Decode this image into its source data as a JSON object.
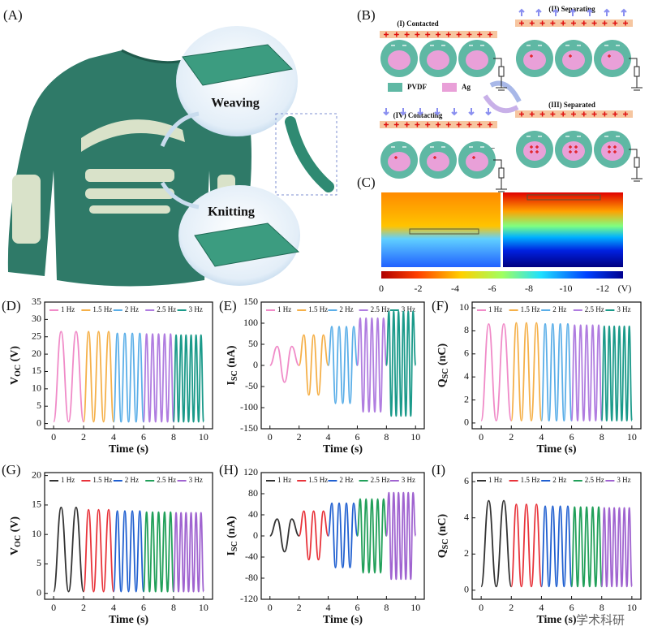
{
  "panel_labels": [
    "(A)",
    "(B)",
    "(C)",
    "(D)",
    "(E)",
    "(F)",
    "(G)",
    "(H)",
    "(I)"
  ],
  "panel_a": {
    "weaving": "Weaving",
    "knitting": "Knitting"
  },
  "panel_b": {
    "states": [
      "(I) Contacted",
      "(II) Separating",
      "(III) Separated",
      "(IV) Contacting"
    ],
    "legend": [
      "PVDF",
      "Ag"
    ],
    "electron": "e⁻"
  },
  "panel_c": {
    "colorbar_ticks": [
      0,
      -2,
      -4,
      -6,
      -8,
      -10,
      -12
    ],
    "unit": "(V)"
  },
  "watermark": "学术科研",
  "chart_data": [
    {
      "type": "line",
      "ylabel_symbol": "V",
      "ylabel_subscript": "OC",
      "ylabel_unit": " (V)",
      "xlabel": "Time (s)",
      "xlim": [
        -0.6,
        10.6
      ],
      "xticks": [
        0,
        2,
        4,
        6,
        8,
        10
      ],
      "ylim": [
        -1.5,
        35
      ],
      "yticks": [
        0,
        5,
        10,
        15,
        20,
        25,
        30,
        35
      ],
      "series": [
        {
          "name": "1 Hz",
          "color": "#f08bc8",
          "x": [
            0,
            0.5,
            1,
            1.5,
            2
          ],
          "values": [
            0.5,
            26.5,
            0.5,
            26.5,
            0.5
          ]
        },
        {
          "name": "1.5 Hz",
          "color": "#f5b049",
          "x": [
            2,
            2.33,
            2.67,
            3,
            3.33,
            3.67,
            4
          ],
          "values": [
            0.5,
            26.5,
            0.5,
            26.5,
            0.5,
            26.5,
            0.5
          ]
        },
        {
          "name": "2 Hz",
          "color": "#5aaee8",
          "x": [
            4,
            4.25,
            4.5,
            4.75,
            5,
            5.25,
            5.5,
            5.75,
            6
          ],
          "values": [
            0.5,
            26,
            0.5,
            26,
            0.5,
            26,
            0.5,
            26,
            0.5
          ]
        },
        {
          "name": "2.5 Hz",
          "color": "#b07de0",
          "x": [
            6,
            6.2,
            6.4,
            6.6,
            6.8,
            7,
            7.2,
            7.4,
            7.6,
            7.8,
            8
          ],
          "values": [
            0.5,
            25.8,
            0.5,
            25.8,
            0.5,
            25.8,
            0.5,
            25.8,
            0.5,
            25.8,
            0.5
          ]
        },
        {
          "name": "3 Hz",
          "color": "#1b9a8a",
          "x": [
            8,
            8.17,
            8.33,
            8.5,
            8.67,
            8.83,
            9,
            9.17,
            9.33,
            9.5,
            9.67,
            9.83,
            10
          ],
          "values": [
            0.5,
            25.5,
            0.5,
            25.5,
            0.5,
            25.5,
            0.5,
            25.5,
            0.5,
            25.5,
            0.5,
            25.5,
            0.5
          ]
        }
      ]
    },
    {
      "type": "line",
      "ylabel_symbol": "I",
      "ylabel_subscript": "SC",
      "ylabel_unit": " (nA)",
      "xlabel": "Time (s)",
      "xlim": [
        -0.6,
        10.6
      ],
      "xticks": [
        0,
        2,
        4,
        6,
        8,
        10
      ],
      "ylim": [
        -150,
        150
      ],
      "yticks": [
        -150,
        -100,
        -50,
        0,
        50,
        100,
        150
      ],
      "series": [
        {
          "name": "1 Hz",
          "color": "#f08bc8",
          "x": [
            0,
            0.5,
            1,
            1.5,
            2
          ],
          "values": [
            0,
            45,
            -40,
            45,
            0
          ]
        },
        {
          "name": "1.5 Hz",
          "color": "#f5b049",
          "x": [
            2,
            2.33,
            2.67,
            3,
            3.33,
            3.67,
            4
          ],
          "values": [
            0,
            72,
            -70,
            72,
            -70,
            72,
            0
          ]
        },
        {
          "name": "2 Hz",
          "color": "#5aaee8",
          "x": [
            4,
            4.25,
            4.5,
            4.75,
            5,
            5.25,
            5.5,
            5.75,
            6
          ],
          "values": [
            0,
            92,
            -90,
            92,
            -90,
            92,
            -90,
            92,
            0
          ]
        },
        {
          "name": "2.5 Hz",
          "color": "#b07de0",
          "x": [
            6,
            6.2,
            6.4,
            6.6,
            6.8,
            7,
            7.2,
            7.4,
            7.6,
            7.8,
            8
          ],
          "values": [
            0,
            112,
            -110,
            112,
            -110,
            112,
            -110,
            112,
            -110,
            112,
            0
          ]
        },
        {
          "name": "3 Hz",
          "color": "#1b9a8a",
          "x": [
            8,
            8.17,
            8.33,
            8.5,
            8.67,
            8.83,
            9,
            9.17,
            9.33,
            9.5,
            9.67,
            9.83,
            10
          ],
          "values": [
            0,
            128,
            -120,
            128,
            -120,
            128,
            -120,
            128,
            -120,
            128,
            -120,
            128,
            0
          ]
        }
      ]
    },
    {
      "type": "line",
      "ylabel_symbol": "Q",
      "ylabel_subscript": "SC",
      "ylabel_unit": " (nC)",
      "xlabel": "Time (s)",
      "xlim": [
        -0.6,
        10.6
      ],
      "xticks": [
        0,
        2,
        4,
        6,
        8,
        10
      ],
      "ylim": [
        -0.5,
        10.5
      ],
      "yticks": [
        0,
        2,
        4,
        6,
        8,
        10
      ],
      "series": [
        {
          "name": "1 Hz",
          "color": "#f08bc8",
          "x": [
            0,
            0.5,
            1,
            1.5,
            2
          ],
          "values": [
            0.2,
            8.6,
            0.2,
            8.6,
            0.2
          ]
        },
        {
          "name": "1.5 Hz",
          "color": "#f5b049",
          "x": [
            2,
            2.33,
            2.67,
            3,
            3.33,
            3.67,
            4
          ],
          "values": [
            0.2,
            8.7,
            0.2,
            8.7,
            0.2,
            8.7,
            0.2
          ]
        },
        {
          "name": "2 Hz",
          "color": "#5aaee8",
          "x": [
            4,
            4.25,
            4.5,
            4.75,
            5,
            5.25,
            5.5,
            5.75,
            6
          ],
          "values": [
            0.2,
            8.6,
            0.2,
            8.6,
            0.2,
            8.6,
            0.2,
            8.6,
            0.2
          ]
        },
        {
          "name": "2.5 Hz",
          "color": "#b07de0",
          "x": [
            6,
            6.2,
            6.4,
            6.6,
            6.8,
            7,
            7.2,
            7.4,
            7.6,
            7.8,
            8
          ],
          "values": [
            0.2,
            8.5,
            0.2,
            8.5,
            0.2,
            8.5,
            0.2,
            8.5,
            0.2,
            8.5,
            0.2
          ]
        },
        {
          "name": "3 Hz",
          "color": "#1b9a8a",
          "x": [
            8,
            8.17,
            8.33,
            8.5,
            8.67,
            8.83,
            9,
            9.17,
            9.33,
            9.5,
            9.67,
            9.83,
            10
          ],
          "values": [
            0.2,
            8.4,
            0.2,
            8.4,
            0.2,
            8.4,
            0.2,
            8.4,
            0.2,
            8.4,
            0.2,
            8.4,
            0.2
          ]
        }
      ]
    },
    {
      "type": "line",
      "ylabel_symbol": "V",
      "ylabel_subscript": "OC",
      "ylabel_unit": " (V)",
      "xlabel": "Time (s)",
      "xlim": [
        -0.6,
        10.6
      ],
      "xticks": [
        0,
        2,
        4,
        6,
        8,
        10
      ],
      "ylim": [
        -1,
        20.5
      ],
      "yticks": [
        0,
        5,
        10,
        15,
        20
      ],
      "series": [
        {
          "name": "1 Hz",
          "color": "#333333",
          "x": [
            0,
            0.5,
            1,
            1.5,
            2
          ],
          "values": [
            0.3,
            14.6,
            0.3,
            14.6,
            0.3
          ]
        },
        {
          "name": "1.5 Hz",
          "color": "#e8333a",
          "x": [
            2,
            2.33,
            2.67,
            3,
            3.33,
            3.67,
            4
          ],
          "values": [
            0.3,
            14.2,
            0.3,
            14.2,
            0.3,
            14.2,
            0.3
          ]
        },
        {
          "name": "2 Hz",
          "color": "#1f5fd0",
          "x": [
            4,
            4.25,
            4.5,
            4.75,
            5,
            5.25,
            5.5,
            5.75,
            6
          ],
          "values": [
            0.3,
            14,
            0.3,
            14,
            0.3,
            14,
            0.3,
            14,
            0.3
          ]
        },
        {
          "name": "2.5 Hz",
          "color": "#22a05a",
          "x": [
            6,
            6.2,
            6.4,
            6.6,
            6.8,
            7,
            7.2,
            7.4,
            7.6,
            7.8,
            8
          ],
          "values": [
            0.3,
            13.8,
            0.3,
            13.8,
            0.3,
            13.8,
            0.3,
            13.8,
            0.3,
            13.8,
            0.3
          ]
        },
        {
          "name": "3 Hz",
          "color": "#a064d0",
          "x": [
            8,
            8.17,
            8.33,
            8.5,
            8.67,
            8.83,
            9,
            9.17,
            9.33,
            9.5,
            9.67,
            9.83,
            10
          ],
          "values": [
            0.3,
            13.7,
            0.3,
            13.7,
            0.3,
            13.7,
            0.3,
            13.7,
            0.3,
            13.7,
            0.3,
            13.7,
            0.3
          ]
        }
      ]
    },
    {
      "type": "line",
      "ylabel_symbol": "I",
      "ylabel_subscript": "SC",
      "ylabel_unit": " (nA)",
      "xlabel": "Time (s)",
      "xlim": [
        -0.6,
        10.6
      ],
      "xticks": [
        0,
        2,
        4,
        6,
        8,
        10
      ],
      "ylim": [
        -120,
        120
      ],
      "yticks": [
        -120,
        -80,
        -40,
        0,
        40,
        80,
        120
      ],
      "series": [
        {
          "name": "1 Hz",
          "color": "#333333",
          "x": [
            0,
            0.5,
            1,
            1.5,
            2
          ],
          "values": [
            0,
            32,
            -30,
            32,
            0
          ]
        },
        {
          "name": "1.5 Hz",
          "color": "#e8333a",
          "x": [
            2,
            2.33,
            2.67,
            3,
            3.33,
            3.67,
            4
          ],
          "values": [
            0,
            47,
            -45,
            47,
            -45,
            47,
            0
          ]
        },
        {
          "name": "2 Hz",
          "color": "#1f5fd0",
          "x": [
            4,
            4.25,
            4.5,
            4.75,
            5,
            5.25,
            5.5,
            5.75,
            6
          ],
          "values": [
            0,
            62,
            -60,
            62,
            -60,
            62,
            -60,
            62,
            0
          ]
        },
        {
          "name": "2.5 Hz",
          "color": "#22a05a",
          "x": [
            6,
            6.2,
            6.4,
            6.6,
            6.8,
            7,
            7.2,
            7.4,
            7.6,
            7.8,
            8
          ],
          "values": [
            0,
            70,
            -70,
            70,
            -70,
            70,
            -70,
            70,
            -70,
            70,
            0
          ]
        },
        {
          "name": "3 Hz",
          "color": "#a064d0",
          "x": [
            8,
            8.17,
            8.33,
            8.5,
            8.67,
            8.83,
            9,
            9.17,
            9.33,
            9.5,
            9.67,
            9.83,
            10
          ],
          "values": [
            0,
            82,
            -82,
            82,
            -82,
            82,
            -82,
            82,
            -82,
            82,
            -82,
            82,
            0
          ]
        }
      ]
    },
    {
      "type": "line",
      "ylabel_symbol": "Q",
      "ylabel_subscript": "SC",
      "ylabel_unit": " (nC)",
      "xlabel": "Time (s)",
      "xlim": [
        -0.6,
        10.6
      ],
      "xticks": [
        0,
        2,
        4,
        6,
        8,
        10
      ],
      "ylim": [
        -0.5,
        6.5
      ],
      "yticks": [
        0,
        2,
        4,
        6
      ],
      "series": [
        {
          "name": "1 Hz",
          "color": "#333333",
          "x": [
            0,
            0.5,
            1,
            1.5,
            2
          ],
          "values": [
            0.2,
            4.95,
            0.2,
            4.95,
            0.2
          ]
        },
        {
          "name": "1.5 Hz",
          "color": "#e8333a",
          "x": [
            2,
            2.33,
            2.67,
            3,
            3.33,
            3.67,
            4
          ],
          "values": [
            0.2,
            4.75,
            0.2,
            4.75,
            0.2,
            4.75,
            0.2
          ]
        },
        {
          "name": "2 Hz",
          "color": "#1f5fd0",
          "x": [
            4,
            4.25,
            4.5,
            4.75,
            5,
            5.25,
            5.5,
            5.75,
            6
          ],
          "values": [
            0.2,
            4.65,
            0.2,
            4.65,
            0.2,
            4.65,
            0.2,
            4.65,
            0.2
          ]
        },
        {
          "name": "2.5 Hz",
          "color": "#22a05a",
          "x": [
            6,
            6.2,
            6.4,
            6.6,
            6.8,
            7,
            7.2,
            7.4,
            7.6,
            7.8,
            8
          ],
          "values": [
            0.2,
            4.6,
            0.2,
            4.6,
            0.2,
            4.6,
            0.2,
            4.6,
            0.2,
            4.6,
            0.2
          ]
        },
        {
          "name": "3 Hz",
          "color": "#a064d0",
          "x": [
            8,
            8.17,
            8.33,
            8.5,
            8.67,
            8.83,
            9,
            9.17,
            9.33,
            9.5,
            9.67,
            9.83,
            10
          ],
          "values": [
            0.2,
            4.55,
            0.2,
            4.55,
            0.2,
            4.55,
            0.2,
            4.55,
            0.2,
            4.55,
            0.2,
            4.55,
            0.2
          ]
        }
      ]
    }
  ]
}
